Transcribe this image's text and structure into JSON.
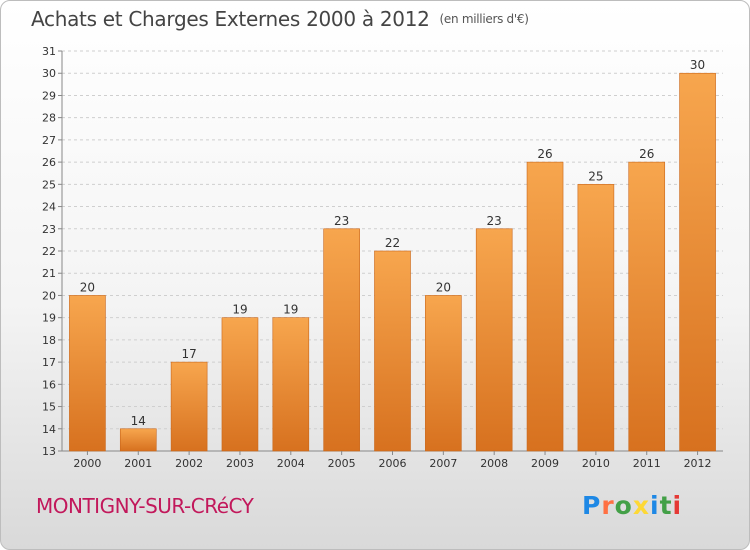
{
  "title": "Achats et Charges Externes 2000 à 2012",
  "unit": "(en milliers d'€)",
  "commune": "MONTIGNY-SUR-CRéCY",
  "logo": {
    "letters": [
      "P",
      "r",
      "o",
      "x",
      "i",
      "t",
      "i"
    ],
    "colors": [
      "#1e88e5",
      "#ff7043",
      "#43a047",
      "#fdd835",
      "#1e88e5",
      "#43a047",
      "#e53935"
    ]
  },
  "colors": {
    "bar_light": "#f7a64e",
    "bar_dark": "#d7711f",
    "axis": "#888888",
    "grid": "#cfcfcf",
    "commune": "#c2185b"
  },
  "chart_data": {
    "type": "bar",
    "title": "Achats et Charges Externes 2000 à 2012",
    "subtitle": "(en milliers d'€)",
    "categories": [
      "2000",
      "2001",
      "2002",
      "2003",
      "2004",
      "2005",
      "2006",
      "2007",
      "2008",
      "2009",
      "2010",
      "2011",
      "2012"
    ],
    "values": [
      20,
      14,
      17,
      19,
      19,
      23,
      22,
      20,
      23,
      26,
      25,
      26,
      30
    ],
    "ylim": [
      13,
      31
    ],
    "yticks": [
      13,
      14,
      15,
      16,
      17,
      18,
      19,
      20,
      21,
      22,
      23,
      24,
      25,
      26,
      27,
      28,
      29,
      30,
      31
    ],
    "grid": true,
    "data_labels": true
  }
}
